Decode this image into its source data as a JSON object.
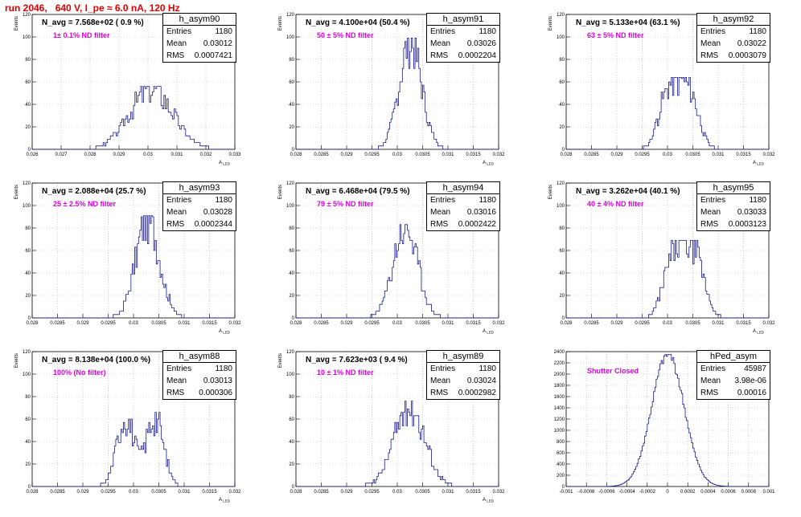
{
  "run_title": "run 2046,   640 V, I_pe ≈ 6.0 nA, 120 Hz",
  "colors": {
    "histogram": "#1a1a8c",
    "run_title": "#e00000",
    "filter_label": "#e000e0"
  },
  "chart_data": [
    {
      "type": "bar",
      "name": "h_asym90",
      "navg": "N_avg = 7.568e+02 ( 0.9 %)",
      "filter": "1± 0.1% ND filter",
      "stats": {
        "entries": "1180",
        "mean": "0.03012",
        "rms": "0.0007421"
      },
      "xlim": [
        0.026,
        0.033
      ],
      "ylim": [
        0,
        120
      ],
      "xticks": [
        "0.026",
        "0.027",
        "0.028",
        "0.029",
        "0.03",
        "0.031",
        "0.032",
        "0.033"
      ],
      "yticks": [
        "0",
        "20",
        "40",
        "60",
        "80",
        "100",
        "120"
      ],
      "xlabel": "A_LED",
      "ylabel": "Events",
      "hist": {
        "mean": 0.03012,
        "rms": 0.0007421,
        "peak": 56,
        "bins": 140,
        "seed": 3,
        "shape": "single"
      }
    },
    {
      "type": "bar",
      "name": "h_asym91",
      "navg": "N_avg = 4.100e+04 (50.4 %)",
      "filter": "50 ± 5% ND filter",
      "stats": {
        "entries": "1180",
        "mean": "0.03026",
        "rms": "0.0002204"
      },
      "xlim": [
        0.028,
        0.032
      ],
      "ylim": [
        0,
        120
      ],
      "xticks": [
        "0.028",
        "0.0285",
        "0.029",
        "0.0295",
        "0.03",
        "0.0305",
        "0.031",
        "0.0315",
        "0.032"
      ],
      "yticks": [
        "0",
        "20",
        "40",
        "60",
        "80",
        "100",
        "120"
      ],
      "xlabel": "A_LED",
      "ylabel": "Events",
      "hist": {
        "mean": 0.03026,
        "rms": 0.0002204,
        "peak": 99,
        "bins": 160,
        "seed": 7,
        "shape": "single"
      }
    },
    {
      "type": "bar",
      "name": "h_asym92",
      "navg": "N_avg = 5.133e+04 (63.1 %)",
      "filter": "63 ± 5% ND filter",
      "stats": {
        "entries": "1180",
        "mean": "0.03022",
        "rms": "0.0003079"
      },
      "xlim": [
        0.028,
        0.032
      ],
      "ylim": [
        0,
        120
      ],
      "xticks": [
        "0.028",
        "0.0285",
        "0.029",
        "0.0295",
        "0.03",
        "0.0305",
        "0.031",
        "0.0315",
        "0.032"
      ],
      "yticks": [
        "0",
        "20",
        "40",
        "60",
        "80",
        "100",
        "120"
      ],
      "xlabel": "A_LED",
      "ylabel": "Events",
      "hist": {
        "mean": 0.03022,
        "rms": 0.0003079,
        "peak": 64,
        "bins": 160,
        "seed": 11,
        "shape": "flat"
      }
    },
    {
      "type": "bar",
      "name": "h_asym93",
      "navg": "N_avg = 2.088e+04 (25.7 %)",
      "filter": "25 ± 2.5% ND filter",
      "stats": {
        "entries": "1180",
        "mean": "0.03028",
        "rms": "0.0002344"
      },
      "xlim": [
        0.028,
        0.032
      ],
      "ylim": [
        0,
        120
      ],
      "xticks": [
        "0.028",
        "0.0285",
        "0.029",
        "0.0295",
        "0.03",
        "0.0305",
        "0.031",
        "0.0315",
        "0.032"
      ],
      "yticks": [
        "0",
        "20",
        "40",
        "60",
        "80",
        "100",
        "120"
      ],
      "xlabel": "A_LED",
      "ylabel": "Events",
      "hist": {
        "mean": 0.03028,
        "rms": 0.0002344,
        "peak": 91,
        "bins": 160,
        "seed": 17,
        "shape": "single"
      }
    },
    {
      "type": "bar",
      "name": "h_asym94",
      "navg": "N_avg = 6.468e+04 (79.5 %)",
      "filter": "79 ± 5% ND filter",
      "stats": {
        "entries": "1180",
        "mean": "0.03016",
        "rms": "0.0002422"
      },
      "xlim": [
        0.028,
        0.032
      ],
      "ylim": [
        0,
        120
      ],
      "xticks": [
        "0.028",
        "0.0285",
        "0.029",
        "0.0295",
        "0.03",
        "0.0305",
        "0.031",
        "0.0315",
        "0.032"
      ],
      "yticks": [
        "0",
        "20",
        "40",
        "60",
        "80",
        "100",
        "120"
      ],
      "xlabel": "A_LED",
      "ylabel": "Events",
      "hist": {
        "mean": 0.03016,
        "rms": 0.0002422,
        "peak": 83,
        "bins": 160,
        "seed": 23,
        "shape": "single"
      }
    },
    {
      "type": "bar",
      "name": "h_asym95",
      "navg": "N_avg = 3.262e+04 (40.1 %)",
      "filter": "40 ± 4% ND filter",
      "stats": {
        "entries": "1180",
        "mean": "0.03033",
        "rms": "0.0003123"
      },
      "xlim": [
        0.028,
        0.032
      ],
      "ylim": [
        0,
        120
      ],
      "xticks": [
        "0.028",
        "0.0285",
        "0.029",
        "0.0295",
        "0.03",
        "0.0305",
        "0.031",
        "0.0315",
        "0.032"
      ],
      "yticks": [
        "0",
        "20",
        "40",
        "60",
        "80",
        "100",
        "120"
      ],
      "xlabel": "A_LED",
      "ylabel": "Events",
      "hist": {
        "mean": 0.03033,
        "rms": 0.0003123,
        "peak": 69,
        "bins": 160,
        "seed": 29,
        "shape": "flat"
      }
    },
    {
      "type": "bar",
      "name": "h_asym88",
      "navg": "N_avg = 8.138e+04 (100.0 %)",
      "filter": "100% (No filter)",
      "stats": {
        "entries": "1180",
        "mean": "0.03013",
        "rms": "0.000306"
      },
      "xlim": [
        0.028,
        0.032
      ],
      "ylim": [
        0,
        120
      ],
      "xticks": [
        "0.028",
        "0.0285",
        "0.029",
        "0.0295",
        "0.03",
        "0.0305",
        "0.031",
        "0.0315",
        "0.032"
      ],
      "yticks": [
        "0",
        "20",
        "40",
        "60",
        "80",
        "100",
        "120"
      ],
      "xlabel": "A_LED",
      "ylabel": "Events",
      "hist": {
        "mean": 0.03013,
        "rms": 0.000306,
        "peak": 67,
        "bins": 160,
        "seed": 31,
        "shape": "double"
      }
    },
    {
      "type": "bar",
      "name": "h_asym89",
      "navg": "N_avg = 7.623e+03 ( 9.4 %)",
      "filter": "10 ± 1% ND filter",
      "stats": {
        "entries": "1180",
        "mean": "0.03024",
        "rms": "0.0002982"
      },
      "xlim": [
        0.028,
        0.032
      ],
      "ylim": [
        0,
        120
      ],
      "xticks": [
        "0.028",
        "0.0285",
        "0.029",
        "0.0295",
        "0.03",
        "0.0305",
        "0.031",
        "0.0315",
        "0.032"
      ],
      "yticks": [
        "0",
        "20",
        "40",
        "60",
        "80",
        "100",
        "120"
      ],
      "xlabel": "A_LED",
      "ylabel": "Events",
      "hist": {
        "mean": 0.03024,
        "rms": 0.0002982,
        "peak": 76,
        "bins": 160,
        "seed": 37,
        "shape": "single"
      }
    },
    {
      "type": "bar",
      "name": "hPed_asym",
      "navg": "",
      "filter": "Shutter Closed",
      "stats": {
        "entries": "45987",
        "mean": "3.98e-06",
        "rms": "0.00016"
      },
      "xlim": [
        -0.001,
        0.001
      ],
      "ylim": [
        0,
        2400
      ],
      "xticks": [
        "-0.001",
        "-0.0008",
        "-0.0006",
        "-0.0004",
        "-0.0002",
        "0",
        "0.0002",
        "0.0004",
        "0.0006",
        "0.0008",
        "0.001"
      ],
      "yticks": [
        "0",
        "200",
        "400",
        "600",
        "800",
        "1000",
        "1200",
        "1400",
        "1600",
        "1800",
        "2000",
        "2200",
        "2400"
      ],
      "xlabel": "",
      "ylabel": "",
      "hist": {
        "mean": 3.98e-06,
        "rms": 0.00016,
        "peak": 2350,
        "bins": 160,
        "seed": 41,
        "shape": "smooth"
      }
    }
  ]
}
